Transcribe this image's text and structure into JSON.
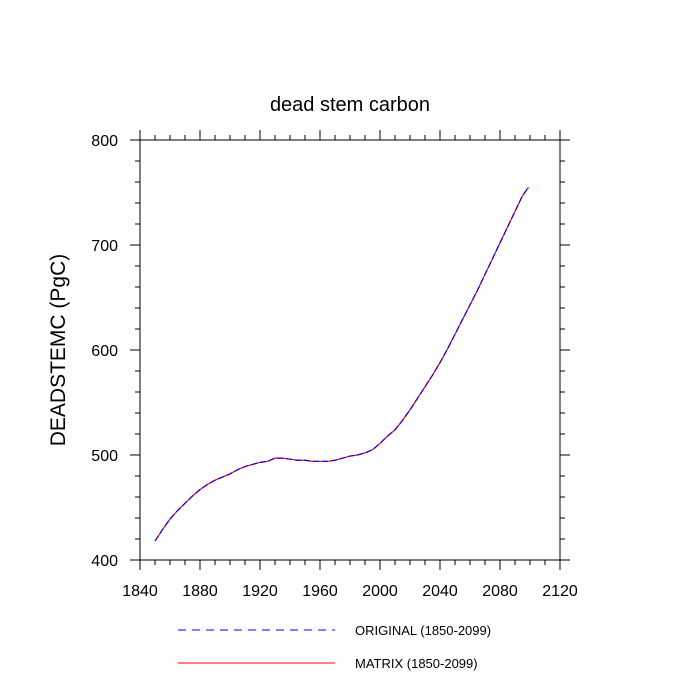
{
  "chart_data": {
    "type": "line",
    "title": "dead stem carbon",
    "xlabel": "",
    "ylabel": "DEADSTEMC  (PgC)",
    "xlim": [
      1840,
      2120
    ],
    "ylim": [
      400,
      800
    ],
    "x_ticks": [
      1840,
      1880,
      1920,
      1960,
      2000,
      2040,
      2080,
      2120
    ],
    "y_ticks": [
      400,
      500,
      600,
      700,
      800
    ],
    "x_tick_labels": [
      "1840",
      "1880",
      "1920",
      "1960",
      "2000",
      "2040",
      "2080",
      "2120"
    ],
    "y_tick_labels": [
      "400",
      "500",
      "600",
      "700",
      "800"
    ],
    "grid": false,
    "legend_position": "bottom",
    "x": [
      1850,
      1855,
      1860,
      1865,
      1870,
      1875,
      1880,
      1885,
      1890,
      1895,
      1900,
      1905,
      1910,
      1915,
      1920,
      1925,
      1930,
      1935,
      1940,
      1945,
      1950,
      1955,
      1960,
      1965,
      1970,
      1975,
      1980,
      1985,
      1990,
      1995,
      2000,
      2005,
      2010,
      2015,
      2020,
      2025,
      2030,
      2035,
      2040,
      2045,
      2050,
      2055,
      2060,
      2065,
      2070,
      2075,
      2080,
      2085,
      2090,
      2095,
      2099
    ],
    "series": [
      {
        "name": "ORIGINAL (1850-2099)",
        "color": "#0000ff",
        "style": "dashed",
        "values": [
          418,
          429,
          439,
          447,
          454,
          461,
          467,
          472,
          476,
          479,
          482,
          486,
          489,
          491,
          493,
          494,
          497,
          497,
          496,
          495,
          495,
          494,
          494,
          494,
          495,
          497,
          499,
          500,
          502,
          505,
          511,
          518,
          524,
          533,
          543,
          554,
          565,
          576,
          588,
          601,
          615,
          629,
          643,
          657,
          672,
          687,
          702,
          717,
          732,
          747,
          755
        ]
      },
      {
        "name": "MATRIX (1850-2099)",
        "color": "#ff0000",
        "style": "solid",
        "values": [
          418,
          429,
          439,
          447,
          454,
          461,
          467,
          472,
          476,
          479,
          482,
          486,
          489,
          491,
          493,
          494,
          497,
          497,
          496,
          495,
          495,
          494,
          494,
          494,
          495,
          497,
          499,
          500,
          502,
          505,
          511,
          518,
          524,
          533,
          543,
          554,
          565,
          576,
          588,
          601,
          615,
          629,
          643,
          657,
          672,
          687,
          702,
          717,
          732,
          747,
          755
        ]
      }
    ]
  }
}
